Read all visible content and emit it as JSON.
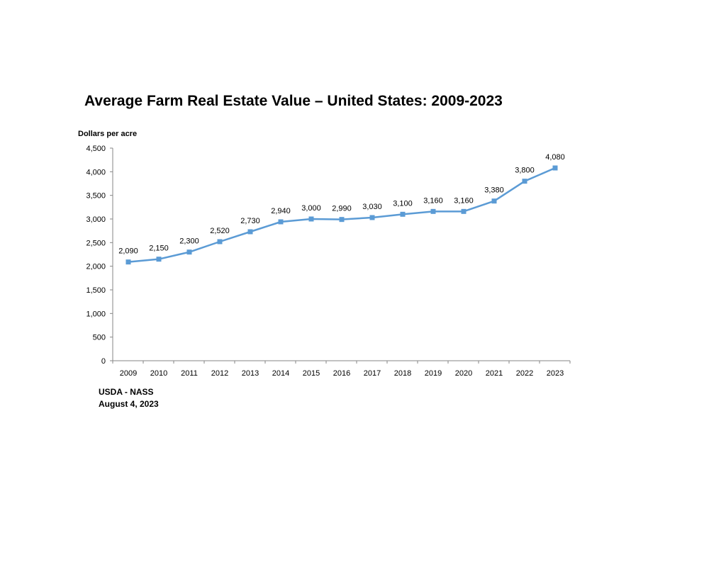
{
  "chart_data": {
    "type": "line",
    "title": "Average Farm Real Estate Value – United States: 2009-2023",
    "ylabel": "Dollars per acre",
    "xlabel": "",
    "categories": [
      "2009",
      "2010",
      "2011",
      "2012",
      "2013",
      "2014",
      "2015",
      "2016",
      "2017",
      "2018",
      "2019",
      "2020",
      "2021",
      "2022",
      "2023"
    ],
    "series": [
      {
        "values": [
          2090,
          2150,
          2300,
          2520,
          2730,
          2940,
          3000,
          2990,
          3030,
          3100,
          3160,
          3160,
          3380,
          3800,
          4080
        ],
        "data_labels": [
          "2,090",
          "2,150",
          "2,300",
          "2,520",
          "2,730",
          "2,940",
          "3,000",
          "2,990",
          "3,030",
          "3,100",
          "3,160",
          "3,160",
          "3,380",
          "3,800",
          "4,080"
        ],
        "color": "#5B9BD5"
      }
    ],
    "ylim": [
      0,
      4500
    ],
    "yticks": [
      0,
      500,
      1000,
      1500,
      2000,
      2500,
      3000,
      3500,
      4000,
      4500
    ],
    "ytick_labels": [
      "0",
      "500",
      "1,000",
      "1,500",
      "2,000",
      "2,500",
      "3,000",
      "3,500",
      "4,000",
      "4,500"
    ],
    "grid": false,
    "legend": "none"
  },
  "footer": {
    "source": "USDA - NASS",
    "date": "August 4, 2023"
  },
  "colors": {
    "line": "#5B9BD5",
    "axis": "#868686"
  }
}
